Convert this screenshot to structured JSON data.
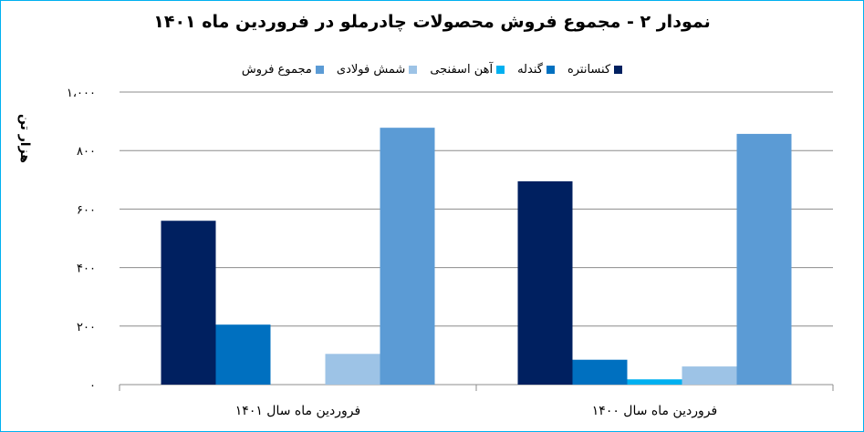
{
  "chart_data": {
    "type": "bar",
    "title": "نمودار ۲ - مجموع فروش محصولات چادرملو در فروردین ماه ۱۴۰۱",
    "ylabel": "هزار تن",
    "xlabel": "",
    "ylim": [
      0,
      1000
    ],
    "yticks": [
      0,
      200,
      400,
      600,
      800,
      1000
    ],
    "ytick_labels": [
      "۰",
      "۲۰۰",
      "۴۰۰",
      "۶۰۰",
      "۸۰۰",
      "۱،۰۰۰"
    ],
    "grid": true,
    "legend_position": "top",
    "categories": [
      "فروردین ماه سال ۱۴۰۱",
      "فروردین ماه سال ۱۴۰۰"
    ],
    "series": [
      {
        "name": "کنسانتره",
        "color": "#002060",
        "values": [
          560,
          695
        ]
      },
      {
        "name": "گندله",
        "color": "#0070c0",
        "values": [
          205,
          85
        ]
      },
      {
        "name": "آهن اسفنجی",
        "color": "#00b0f0",
        "values": [
          0,
          18
        ]
      },
      {
        "name": "شمش فولادی",
        "color": "#9dc3e6",
        "values": [
          105,
          62
        ]
      },
      {
        "name": "مجموع فروش",
        "color": "#5b9bd5",
        "values": [
          878,
          857
        ]
      }
    ]
  }
}
